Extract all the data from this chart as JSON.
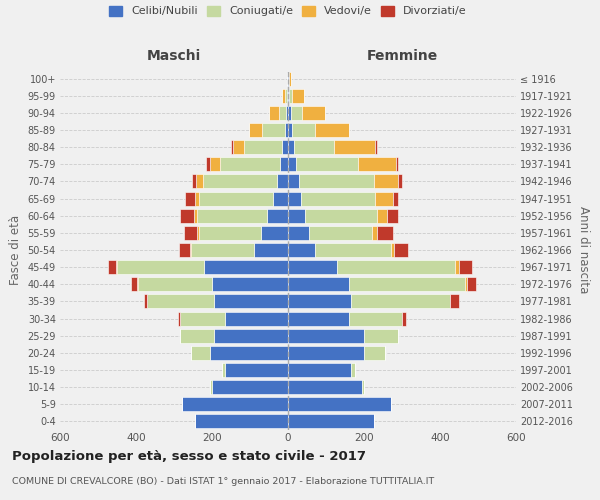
{
  "age_groups": [
    "0-4",
    "5-9",
    "10-14",
    "15-19",
    "20-24",
    "25-29",
    "30-34",
    "35-39",
    "40-44",
    "45-49",
    "50-54",
    "55-59",
    "60-64",
    "65-69",
    "70-74",
    "75-79",
    "80-84",
    "85-89",
    "90-94",
    "95-99",
    "100+"
  ],
  "birth_years": [
    "2012-2016",
    "2007-2011",
    "2002-2006",
    "1997-2001",
    "1992-1996",
    "1987-1991",
    "1982-1986",
    "1977-1981",
    "1972-1976",
    "1967-1971",
    "1962-1966",
    "1957-1961",
    "1952-1956",
    "1947-1951",
    "1942-1946",
    "1937-1941",
    "1932-1936",
    "1927-1931",
    "1922-1926",
    "1917-1921",
    "≤ 1916"
  ],
  "colors": {
    "celibi": "#4472C4",
    "coniugati": "#c5d9a0",
    "vedovi": "#f0b040",
    "divorziati": "#c0392b"
  },
  "male": {
    "celibi": [
      245,
      280,
      200,
      165,
      205,
      195,
      165,
      195,
      200,
      220,
      90,
      70,
      55,
      40,
      30,
      20,
      15,
      8,
      5,
      3,
      2
    ],
    "coniugati": [
      0,
      0,
      5,
      10,
      50,
      90,
      120,
      175,
      195,
      230,
      165,
      165,
      185,
      195,
      195,
      160,
      100,
      60,
      20,
      5,
      0
    ],
    "vedovi": [
      0,
      0,
      0,
      0,
      0,
      0,
      0,
      0,
      3,
      3,
      2,
      5,
      8,
      10,
      18,
      25,
      30,
      35,
      25,
      8,
      0
    ],
    "divorziati": [
      0,
      0,
      0,
      0,
      0,
      0,
      5,
      10,
      15,
      20,
      30,
      35,
      35,
      25,
      10,
      10,
      5,
      0,
      0,
      0,
      0
    ]
  },
  "female": {
    "celibi": [
      225,
      270,
      195,
      165,
      200,
      200,
      160,
      165,
      160,
      130,
      70,
      55,
      45,
      35,
      30,
      20,
      15,
      10,
      8,
      3,
      2
    ],
    "coniugati": [
      0,
      0,
      5,
      10,
      55,
      90,
      140,
      260,
      305,
      310,
      200,
      165,
      190,
      195,
      195,
      165,
      105,
      60,
      30,
      8,
      0
    ],
    "vedovi": [
      0,
      0,
      0,
      0,
      0,
      0,
      0,
      0,
      5,
      10,
      10,
      15,
      25,
      45,
      65,
      100,
      110,
      90,
      60,
      30,
      5
    ],
    "divorziati": [
      0,
      0,
      0,
      0,
      0,
      0,
      10,
      25,
      25,
      35,
      35,
      40,
      30,
      15,
      10,
      5,
      5,
      0,
      0,
      0,
      0
    ]
  },
  "xlim": 600,
  "title": "Popolazione per età, sesso e stato civile - 2017",
  "subtitle": "COMUNE DI CREVALCORE (BO) - Dati ISTAT 1° gennaio 2017 - Elaborazione TUTTITALIA.IT",
  "ylabel_left": "Fasce di età",
  "ylabel_right": "Anni di nascita",
  "header_left": "Maschi",
  "header_right": "Femmine",
  "legend_labels": [
    "Celibi/Nubili",
    "Coniugati/e",
    "Vedovi/e",
    "Divorziati/e"
  ],
  "bg_color": "#f0f0f0"
}
